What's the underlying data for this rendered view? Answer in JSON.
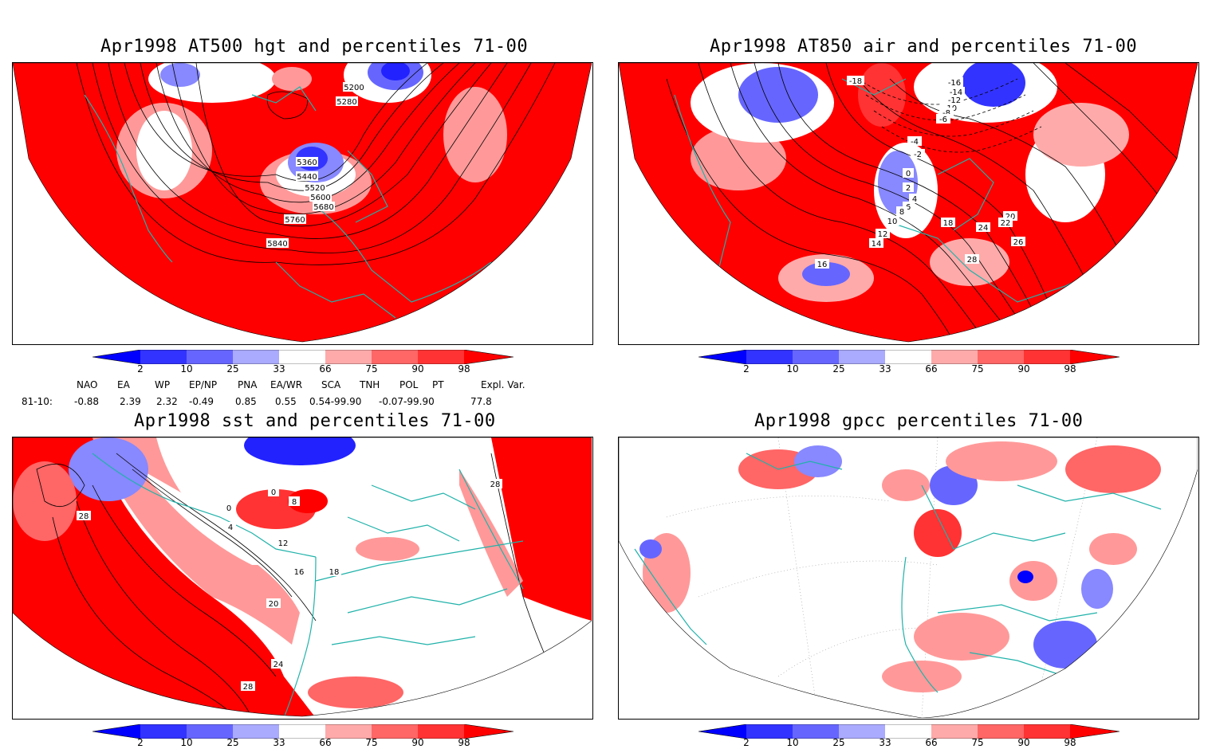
{
  "panels": {
    "top_left": {
      "title": "Apr1998 AT500 hgt and percentiles 71-00",
      "contour_labels": [
        "5200",
        "5280",
        "5360",
        "5440",
        "5520",
        "5600",
        "5680",
        "5760",
        "5840"
      ]
    },
    "top_right": {
      "title": "Apr1998 AT850 air and percentiles 71-00",
      "contour_labels": [
        "-18",
        "-16",
        "-14",
        "-12",
        "-10",
        "-8",
        "-6",
        "-4",
        "-2",
        "0",
        "2",
        "4",
        "6",
        "8",
        "10",
        "12",
        "14",
        "16",
        "18",
        "20",
        "22",
        "24",
        "26",
        "28"
      ]
    },
    "bottom_left": {
      "title": "Apr1998 sst and percentiles 71-00",
      "contour_labels": [
        "0",
        "4",
        "8",
        "12",
        "16",
        "18",
        "20",
        "24",
        "28"
      ]
    },
    "bottom_right": {
      "title": "Apr1998 gpcc percentiles 71-00"
    }
  },
  "colorbar": {
    "ticks": [
      "2",
      "10",
      "25",
      "33",
      "66",
      "75",
      "90",
      "98"
    ],
    "colors": [
      "#0000ff",
      "#3333ff",
      "#6666ff",
      "#aaaaff",
      "#ffffff",
      "#ffaaaa",
      "#ff6666",
      "#ff3333",
      "#ff0000"
    ]
  },
  "indices": {
    "row_label": "81-10:",
    "headers": [
      "NAO",
      "EA",
      "WP",
      "EP/NP",
      "PNA",
      "EA/WR",
      "SCA",
      "TNH",
      "POL",
      "PT",
      "Expl. Var."
    ],
    "values": [
      "-0.88",
      "2.39",
      "2.32",
      "-0.49",
      "0.85",
      "0.55",
      "0.54-99.90",
      "-0.07-99.90",
      "77.8"
    ]
  }
}
